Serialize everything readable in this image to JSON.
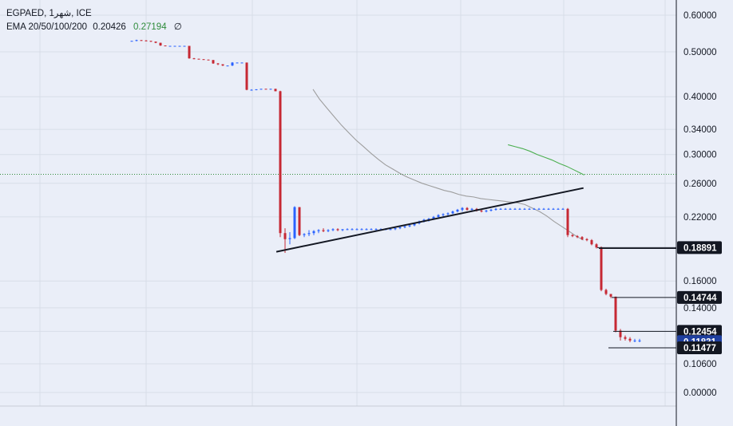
{
  "legend": {
    "symbol_line": "EGPAED, 1شهر, ICE",
    "ema_label": "EMA 20/50/100/200",
    "ema_val_1": "0.20426",
    "ema_val_2": "0.27194",
    "ema_val_3": "∅"
  },
  "colors": {
    "background": "#eaeef8",
    "grid": "#d8dde8",
    "up": "#2962ff",
    "down": "#c62833",
    "ema_short": "#9e9e9e",
    "ema_long": "#4caf50",
    "trendline": "#131722",
    "dotted_line": "#2e8b3a",
    "tag_dark": "#131722",
    "tag_blue": "#1f3f9f"
  },
  "chart_data": {
    "type": "candlestick",
    "symbol": "EGPAED",
    "interval": "1M",
    "exchange": "ICE",
    "y_axis": {
      "scale": "log",
      "ticks": [
        "0.60000",
        "0.50000",
        "0.40000",
        "0.34000",
        "0.30000",
        "0.26000",
        "0.22000",
        "0.16000",
        "0.14000",
        "0.12454",
        "0.10600",
        "0.00000"
      ]
    },
    "price_tags": [
      {
        "value": "0.18891",
        "style": "dark"
      },
      {
        "value": "0.14744",
        "style": "dark"
      },
      {
        "value": "0.12454",
        "style": "dark"
      },
      {
        "value": "0.11831",
        "style": "blue"
      },
      {
        "value": "0.11477",
        "style": "dark"
      }
    ],
    "dotted_level": 0.27194,
    "candles": [
      [
        0.527,
        0.528,
        0.527,
        0.528
      ],
      [
        0.528,
        0.531,
        0.527,
        0.53
      ],
      [
        0.53,
        0.53,
        0.528,
        0.529
      ],
      [
        0.529,
        0.53,
        0.527,
        0.528
      ],
      [
        0.528,
        0.528,
        0.525,
        0.526
      ],
      [
        0.526,
        0.526,
        0.522,
        0.523
      ],
      [
        0.523,
        0.523,
        0.515,
        0.516
      ],
      [
        0.516,
        0.516,
        0.514,
        0.515
      ],
      [
        0.515,
        0.515,
        0.514,
        0.515
      ],
      [
        0.515,
        0.515,
        0.514,
        0.515
      ],
      [
        0.515,
        0.515,
        0.514,
        0.515
      ],
      [
        0.515,
        0.515,
        0.514,
        0.515
      ],
      [
        0.515,
        0.515,
        0.483,
        0.484
      ],
      [
        0.484,
        0.485,
        0.482,
        0.483
      ],
      [
        0.483,
        0.483,
        0.482,
        0.482
      ],
      [
        0.482,
        0.482,
        0.481,
        0.481
      ],
      [
        0.481,
        0.481,
        0.48,
        0.48
      ],
      [
        0.48,
        0.48,
        0.471,
        0.472
      ],
      [
        0.472,
        0.473,
        0.468,
        0.47
      ],
      [
        0.47,
        0.47,
        0.466,
        0.467
      ],
      [
        0.467,
        0.467,
        0.466,
        0.467
      ],
      [
        0.467,
        0.475,
        0.466,
        0.474
      ],
      [
        0.474,
        0.474,
        0.473,
        0.474
      ],
      [
        0.474,
        0.474,
        0.473,
        0.474
      ],
      [
        0.474,
        0.474,
        0.413,
        0.414
      ],
      [
        0.414,
        0.415,
        0.413,
        0.414
      ],
      [
        0.414,
        0.415,
        0.413,
        0.415
      ],
      [
        0.415,
        0.416,
        0.414,
        0.416
      ],
      [
        0.416,
        0.416,
        0.415,
        0.415
      ],
      [
        0.415,
        0.416,
        0.414,
        0.416
      ],
      [
        0.416,
        0.416,
        0.411,
        0.411
      ],
      [
        0.411,
        0.412,
        0.199,
        0.203
      ],
      [
        0.203,
        0.208,
        0.184,
        0.197
      ],
      [
        0.197,
        0.204,
        0.192,
        0.198
      ],
      [
        0.198,
        0.232,
        0.197,
        0.231
      ],
      [
        0.231,
        0.231,
        0.2,
        0.201
      ],
      [
        0.201,
        0.203,
        0.199,
        0.202
      ],
      [
        0.202,
        0.206,
        0.2,
        0.203
      ],
      [
        0.203,
        0.206,
        0.201,
        0.205
      ],
      [
        0.205,
        0.207,
        0.203,
        0.206
      ],
      [
        0.206,
        0.208,
        0.204,
        0.205
      ],
      [
        0.205,
        0.207,
        0.204,
        0.206
      ],
      [
        0.206,
        0.208,
        0.205,
        0.207
      ],
      [
        0.207,
        0.208,
        0.205,
        0.206
      ],
      [
        0.206,
        0.207,
        0.205,
        0.207
      ],
      [
        0.207,
        0.208,
        0.206,
        0.207
      ],
      [
        0.207,
        0.208,
        0.206,
        0.207
      ],
      [
        0.207,
        0.208,
        0.206,
        0.207
      ],
      [
        0.207,
        0.208,
        0.206,
        0.207
      ],
      [
        0.207,
        0.208,
        0.206,
        0.207
      ],
      [
        0.207,
        0.208,
        0.206,
        0.207
      ],
      [
        0.207,
        0.208,
        0.206,
        0.207
      ],
      [
        0.207,
        0.208,
        0.206,
        0.207
      ],
      [
        0.207,
        0.208,
        0.206,
        0.207
      ],
      [
        0.207,
        0.208,
        0.206,
        0.207
      ],
      [
        0.207,
        0.209,
        0.206,
        0.208
      ],
      [
        0.208,
        0.21,
        0.207,
        0.209
      ],
      [
        0.209,
        0.211,
        0.208,
        0.21
      ],
      [
        0.21,
        0.212,
        0.209,
        0.211
      ],
      [
        0.211,
        0.214,
        0.21,
        0.213
      ],
      [
        0.213,
        0.216,
        0.212,
        0.215
      ],
      [
        0.215,
        0.218,
        0.214,
        0.217
      ],
      [
        0.217,
        0.219,
        0.215,
        0.218
      ],
      [
        0.218,
        0.221,
        0.217,
        0.22
      ],
      [
        0.22,
        0.223,
        0.219,
        0.222
      ],
      [
        0.222,
        0.224,
        0.22,
        0.223
      ],
      [
        0.223,
        0.225,
        0.221,
        0.224
      ],
      [
        0.224,
        0.227,
        0.223,
        0.226
      ],
      [
        0.226,
        0.229,
        0.225,
        0.228
      ],
      [
        0.228,
        0.231,
        0.226,
        0.23
      ],
      [
        0.23,
        0.231,
        0.227,
        0.228
      ],
      [
        0.228,
        0.23,
        0.226,
        0.229
      ],
      [
        0.229,
        0.23,
        0.226,
        0.227
      ],
      [
        0.227,
        0.229,
        0.225,
        0.226
      ],
      [
        0.226,
        0.228,
        0.225,
        0.227
      ],
      [
        0.227,
        0.229,
        0.226,
        0.228
      ],
      [
        0.228,
        0.23,
        0.227,
        0.229
      ],
      [
        0.229,
        0.23,
        0.228,
        0.229
      ],
      [
        0.229,
        0.23,
        0.228,
        0.229
      ],
      [
        0.229,
        0.23,
        0.228,
        0.229
      ],
      [
        0.229,
        0.23,
        0.228,
        0.229
      ],
      [
        0.229,
        0.23,
        0.228,
        0.229
      ],
      [
        0.229,
        0.23,
        0.228,
        0.229
      ],
      [
        0.229,
        0.23,
        0.228,
        0.229
      ],
      [
        0.229,
        0.23,
        0.228,
        0.229
      ],
      [
        0.229,
        0.23,
        0.228,
        0.229
      ],
      [
        0.229,
        0.23,
        0.228,
        0.229
      ],
      [
        0.229,
        0.23,
        0.228,
        0.229
      ],
      [
        0.229,
        0.23,
        0.228,
        0.229
      ],
      [
        0.229,
        0.23,
        0.228,
        0.229
      ],
      [
        0.229,
        0.23,
        0.228,
        0.229
      ],
      [
        0.229,
        0.23,
        0.199,
        0.201
      ],
      [
        0.201,
        0.202,
        0.199,
        0.2
      ],
      [
        0.2,
        0.201,
        0.198,
        0.199
      ],
      [
        0.199,
        0.2,
        0.196,
        0.197
      ],
      [
        0.197,
        0.198,
        0.195,
        0.196
      ],
      [
        0.196,
        0.197,
        0.191,
        0.192
      ],
      [
        0.192,
        0.193,
        0.188,
        0.189
      ],
      [
        0.189,
        0.19,
        0.152,
        0.153
      ],
      [
        0.153,
        0.154,
        0.149,
        0.15
      ],
      [
        0.15,
        0.15,
        0.147,
        0.148
      ],
      [
        0.148,
        0.148,
        0.124,
        0.125
      ],
      [
        0.125,
        0.126,
        0.119,
        0.121
      ],
      [
        0.121,
        0.122,
        0.119,
        0.12
      ],
      [
        0.12,
        0.121,
        0.118,
        0.119
      ],
      [
        0.119,
        0.12,
        0.118,
        0.119
      ],
      [
        0.119,
        0.12,
        0.118,
        0.119
      ]
    ],
    "ema_short": [
      [
        0.427,
        0.415
      ],
      [
        0.436,
        0.395
      ],
      [
        0.446,
        0.378
      ],
      [
        0.456,
        0.362
      ],
      [
        0.466,
        0.347
      ],
      [
        0.476,
        0.334
      ],
      [
        0.486,
        0.322
      ],
      [
        0.496,
        0.312
      ],
      [
        0.506,
        0.302
      ],
      [
        0.516,
        0.293
      ],
      [
        0.526,
        0.285
      ],
      [
        0.536,
        0.279
      ],
      [
        0.546,
        0.273
      ],
      [
        0.556,
        0.268
      ],
      [
        0.566,
        0.264
      ],
      [
        0.576,
        0.26
      ],
      [
        0.586,
        0.257
      ],
      [
        0.596,
        0.254
      ],
      [
        0.606,
        0.251
      ],
      [
        0.616,
        0.249
      ],
      [
        0.626,
        0.246
      ],
      [
        0.636,
        0.244
      ],
      [
        0.646,
        0.243
      ],
      [
        0.656,
        0.241
      ],
      [
        0.666,
        0.24
      ],
      [
        0.676,
        0.239
      ],
      [
        0.686,
        0.238
      ],
      [
        0.696,
        0.237
      ],
      [
        0.706,
        0.236
      ],
      [
        0.716,
        0.234
      ],
      [
        0.726,
        0.23
      ],
      [
        0.736,
        0.226
      ],
      [
        0.746,
        0.221
      ],
      [
        0.756,
        0.215
      ],
      [
        0.766,
        0.21
      ],
      [
        0.776,
        0.205
      ],
      [
        0.786,
        0.2
      ],
      [
        0.796,
        0.196
      ]
    ],
    "ema_long": [
      [
        0.693,
        0.315
      ],
      [
        0.703,
        0.312
      ],
      [
        0.713,
        0.309
      ],
      [
        0.723,
        0.305
      ],
      [
        0.733,
        0.3
      ],
      [
        0.743,
        0.296
      ],
      [
        0.753,
        0.292
      ],
      [
        0.763,
        0.287
      ],
      [
        0.773,
        0.283
      ],
      [
        0.783,
        0.278
      ],
      [
        0.793,
        0.273
      ],
      [
        0.797,
        0.271
      ]
    ],
    "trendline": [
      [
        0.377,
        0.185
      ],
      [
        0.796,
        0.254
      ]
    ]
  }
}
